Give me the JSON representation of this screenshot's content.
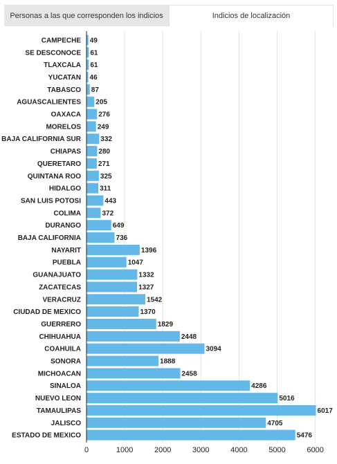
{
  "tabs": [
    {
      "label": "Personas a las que corresponden los indicios",
      "active": false
    },
    {
      "label": "Indicios de localización",
      "active": true
    }
  ],
  "colors": {
    "bar": "#63b8e8",
    "grid": "#e4e4e4",
    "axis": "#222222",
    "text": "#222222"
  },
  "chart_data": {
    "type": "bar",
    "orientation": "horizontal",
    "title": "",
    "xlabel": "",
    "ylabel": "",
    "xlim": [
      0,
      6300
    ],
    "xticks": [
      0,
      1000,
      2000,
      3000,
      4000,
      5000,
      6000
    ],
    "grid": true,
    "legend": "none",
    "categories": [
      "CAMPECHE",
      "SE DESCONOCE",
      "TLAXCALA",
      "YUCATAN",
      "TABASCO",
      "AGUASCALIENTES",
      "OAXACA",
      "MORELOS",
      "BAJA CALIFORNIA SUR",
      "CHIAPAS",
      "QUERETARO",
      "QUINTANA ROO",
      "HIDALGO",
      "SAN LUIS POTOSI",
      "COLIMA",
      "DURANGO",
      "BAJA CALIFORNIA",
      "NAYARIT",
      "PUEBLA",
      "GUANAJUATO",
      "ZACATECAS",
      "VERACRUZ",
      "CIUDAD DE MEXICO",
      "GUERRERO",
      "CHIHUAHUA",
      "COAHUILA",
      "SONORA",
      "MICHOACAN",
      "SINALOA",
      "NUEVO LEON",
      "TAMAULIPAS",
      "JALISCO",
      "ESTADO DE MEXICO"
    ],
    "values": [
      49,
      61,
      61,
      46,
      87,
      205,
      276,
      249,
      332,
      280,
      271,
      325,
      311,
      443,
      372,
      649,
      736,
      1396,
      1047,
      1332,
      1327,
      1542,
      1370,
      1829,
      2448,
      3094,
      1888,
      2458,
      4286,
      5016,
      6017,
      4705,
      5476
    ]
  }
}
